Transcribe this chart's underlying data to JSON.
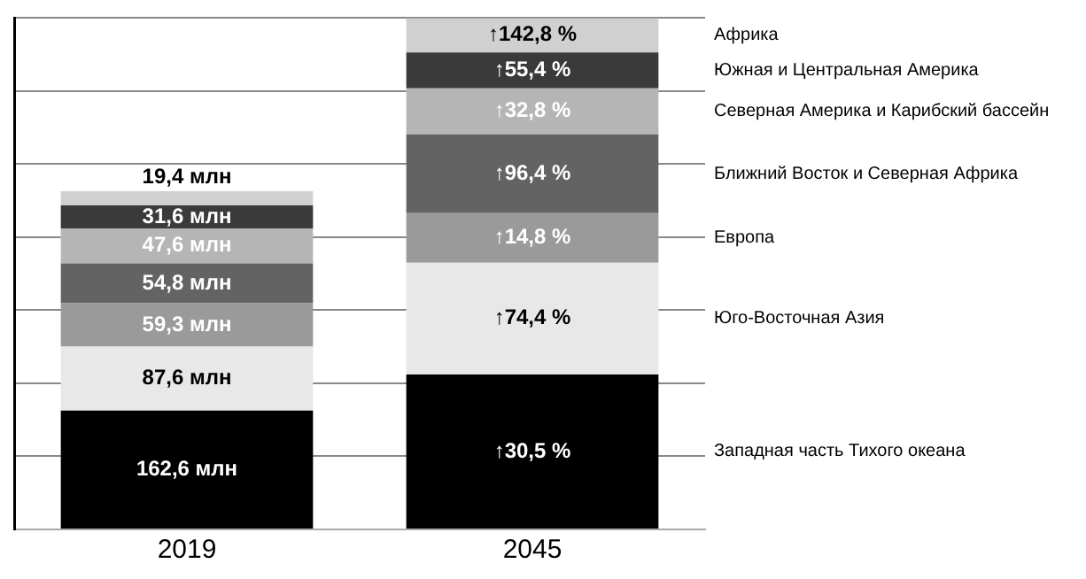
{
  "chart_data": {
    "type": "bar",
    "stacked": true,
    "categories": [
      "2019",
      "2045"
    ],
    "ylim": [
      0,
      700
    ],
    "yticks": [
      {
        "value": 0,
        "label": null
      },
      {
        "value": 100,
        "label": null
      },
      {
        "value": 200,
        "label": null
      },
      {
        "value": 300,
        "label": null
      },
      {
        "value": 400,
        "label": null
      },
      {
        "value": 500,
        "label": null
      },
      {
        "value": 600,
        "label": null
      },
      {
        "value": 700,
        "label": null
      }
    ],
    "grid": "y",
    "series": [
      {
        "name": "Западная часть Тихого океана",
        "color": "#000000",
        "values": [
          162.6,
          212.2
        ],
        "value_labels": [
          "162,6 млн",
          null
        ]
      },
      {
        "name": "Юго-Восточная Азия",
        "color": "#e8e8e8",
        "values": [
          87.6,
          152.8
        ],
        "value_labels": [
          "87,6 млн",
          null
        ]
      },
      {
        "name": "Европа",
        "color": "#9a9a9a",
        "values": [
          59.3,
          68.1
        ],
        "value_labels": [
          "59,3 млн",
          null
        ]
      },
      {
        "name": "Ближний Восток и Северная Африка",
        "color": "#636363",
        "values": [
          54.8,
          107.6
        ],
        "value_labels": [
          "54,8 млн",
          null
        ]
      },
      {
        "name": "Северная Америка и Карибский бассейн",
        "color": "#b5b5b5",
        "values": [
          47.6,
          63.2
        ],
        "value_labels": [
          "47,6 млн",
          null
        ]
      },
      {
        "name": "Южная и Центральная Америка",
        "color": "#3a3a3a",
        "values": [
          31.6,
          49.1
        ],
        "value_labels": [
          "31,6 млн",
          null
        ]
      },
      {
        "name": "Африка",
        "color": "#d0d0d0",
        "values": [
          19.4,
          47.1
        ],
        "value_labels": [
          "19,4 млн",
          null
        ]
      }
    ],
    "annotations": [
      "↑30,5 %",
      "↑74,4 %",
      "↑14,8 %",
      "↑96,4 %",
      "↑32,8 %",
      "↑55,4 %",
      "↑142,8 %"
    ]
  }
}
